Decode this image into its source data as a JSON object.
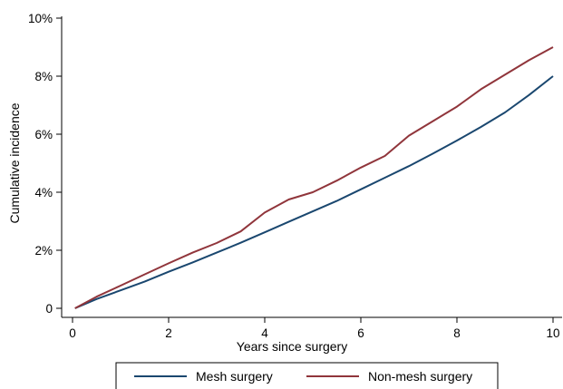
{
  "chart_data": {
    "type": "line",
    "title": "",
    "xlabel": "Years since surgery",
    "ylabel": "Cumulative incidence",
    "xlim": [
      0,
      10
    ],
    "ylim": [
      0,
      10
    ],
    "x_ticks": [
      0,
      2,
      4,
      6,
      8,
      10
    ],
    "y_ticks": [
      0,
      2,
      4,
      6,
      8,
      10
    ],
    "y_tick_labels": [
      "0",
      "2%",
      "4%",
      "6%",
      "8%",
      "10%"
    ],
    "grid": false,
    "legend_position": "bottom",
    "series": [
      {
        "name": "Mesh surgery",
        "color": "#1a476f",
        "x": [
          0.05,
          0.5,
          1.0,
          1.5,
          2.0,
          2.5,
          3.0,
          3.5,
          4.0,
          4.5,
          5.0,
          5.5,
          6.0,
          6.5,
          7.0,
          7.5,
          8.0,
          8.5,
          9.0,
          9.5,
          10.0
        ],
        "y": [
          0.0,
          0.32,
          0.62,
          0.92,
          1.26,
          1.58,
          1.92,
          2.26,
          2.62,
          2.98,
          3.34,
          3.7,
          4.1,
          4.5,
          4.9,
          5.33,
          5.78,
          6.25,
          6.75,
          7.35,
          8.0
        ]
      },
      {
        "name": "Non-mesh surgery",
        "color": "#90353b",
        "x": [
          0.05,
          0.5,
          1.0,
          1.5,
          2.0,
          2.5,
          3.0,
          3.5,
          4.0,
          4.5,
          5.0,
          5.5,
          6.0,
          6.5,
          7.0,
          7.5,
          8.0,
          8.5,
          9.0,
          9.5,
          10.0
        ],
        "y": [
          0.0,
          0.4,
          0.78,
          1.17,
          1.55,
          1.92,
          2.25,
          2.65,
          3.3,
          3.75,
          4.0,
          4.4,
          4.85,
          5.25,
          5.95,
          6.45,
          6.95,
          7.55,
          8.05,
          8.55,
          9.0
        ]
      }
    ]
  }
}
